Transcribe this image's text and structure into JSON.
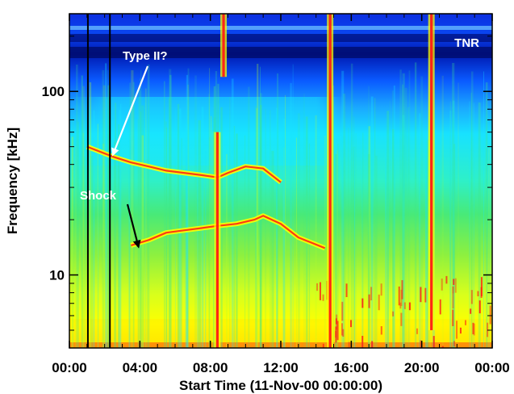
{
  "chart_data": {
    "type": "heatmap",
    "title": "",
    "xlabel": "Start Time (11-Nov-00 00:00:00)",
    "ylabel": "Frequency [kHz]",
    "x_unit": "hours",
    "xlim": [
      0,
      24
    ],
    "x_ticks": [
      0,
      4,
      8,
      12,
      16,
      20,
      24
    ],
    "x_tick_labels": [
      "00:00",
      "04:00",
      "08:00",
      "12:00",
      "16:00",
      "20:00",
      "00:00"
    ],
    "y_scale": "log",
    "ylim": [
      4,
      265
    ],
    "y_ticks": [
      10,
      100
    ],
    "y_tick_labels": [
      "10",
      "100"
    ],
    "instrument_label": "TNR",
    "colormap": [
      "#0015c0",
      "#0a55ff",
      "#18e6ff",
      "#3ee88a",
      "#b2ff2a",
      "#ffff00",
      "#ff1a14"
    ],
    "data_gaps_hours": [
      1.05,
      2.3
    ],
    "annotations": [
      {
        "text": "Type II?",
        "color": "#ffffff",
        "points_to": {
          "x": 2.5,
          "y": 46
        }
      },
      {
        "text": "Shock",
        "color": "#ffffff",
        "points_to": {
          "x": 3.9,
          "y": 14.5
        }
      }
    ],
    "features": [
      {
        "name": "type-ii-lane",
        "x": [
          1.0,
          2.5,
          3.5,
          4.5,
          5.5,
          6.5,
          7.5,
          8.4,
          9.0,
          10.0,
          11.0,
          12.0
        ],
        "y": [
          50,
          44,
          41,
          39,
          37,
          36,
          35,
          34,
          36,
          39,
          38,
          32
        ]
      },
      {
        "name": "shock-lane",
        "x": [
          3.5,
          4.5,
          5.5,
          6.5,
          7.5,
          8.4,
          9.5,
          10.5,
          11.0,
          12.0,
          13.0,
          14.5
        ],
        "y": [
          14.5,
          15.5,
          17,
          17.5,
          18,
          18.5,
          19,
          20,
          21,
          19,
          16,
          14
        ]
      },
      {
        "name": "burst-0825",
        "x": 8.4,
        "y_range": [
          4,
          60
        ]
      },
      {
        "name": "burst-0840",
        "x": 8.75,
        "y_range": [
          120,
          265
        ]
      },
      {
        "name": "burst-1448",
        "x": 14.8,
        "y_range": [
          4,
          265
        ]
      },
      {
        "name": "burst-2030",
        "x": 20.55,
        "y_range": [
          5,
          265
        ]
      }
    ]
  }
}
